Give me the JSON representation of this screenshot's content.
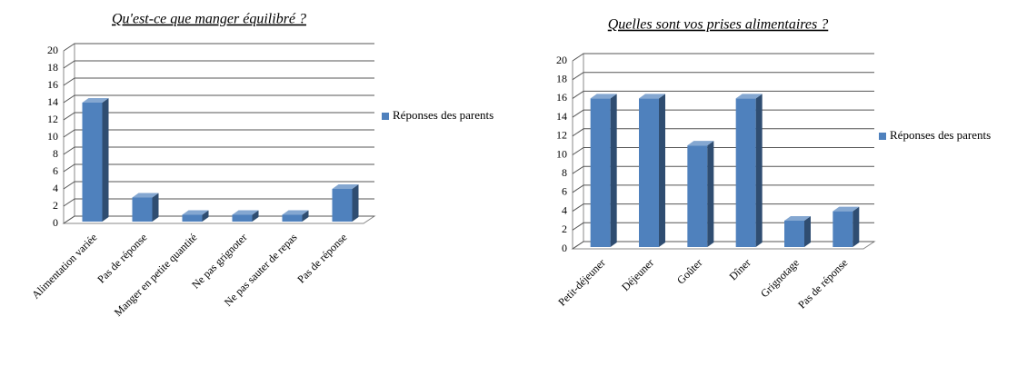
{
  "chart_data": [
    {
      "type": "bar3d",
      "title": "Qu'est-ce que manger équilibré ?",
      "categories": [
        "Alimentation variée",
        "Pas de réponse",
        "Manger en petite quantité",
        "Ne pas grignoter",
        "Ne pas sauter de repas",
        "Pas de réponse"
      ],
      "series": [
        {
          "name": "Réponses des parents",
          "color": "#4f81bd",
          "values": [
            14,
            3,
            1,
            1,
            1,
            4
          ]
        }
      ],
      "ylim": [
        0,
        20
      ],
      "yticks": [
        0,
        2,
        4,
        6,
        8,
        10,
        12,
        14,
        16,
        18,
        20
      ],
      "grid": true
    },
    {
      "type": "bar3d",
      "title": "Quelles sont vos prises alimentaires ?",
      "categories": [
        "Petit-déjeuner",
        "Déjeuner",
        "Goûter",
        "Dîner",
        "Grignotage",
        "Pas de réponse"
      ],
      "series": [
        {
          "name": "Réponses des parents",
          "color": "#4f81bd",
          "values": [
            16,
            16,
            11,
            16,
            3,
            4
          ]
        }
      ],
      "ylim": [
        0,
        20
      ],
      "yticks": [
        0,
        2,
        4,
        6,
        8,
        10,
        12,
        14,
        16,
        18,
        20
      ],
      "grid": true
    }
  ]
}
